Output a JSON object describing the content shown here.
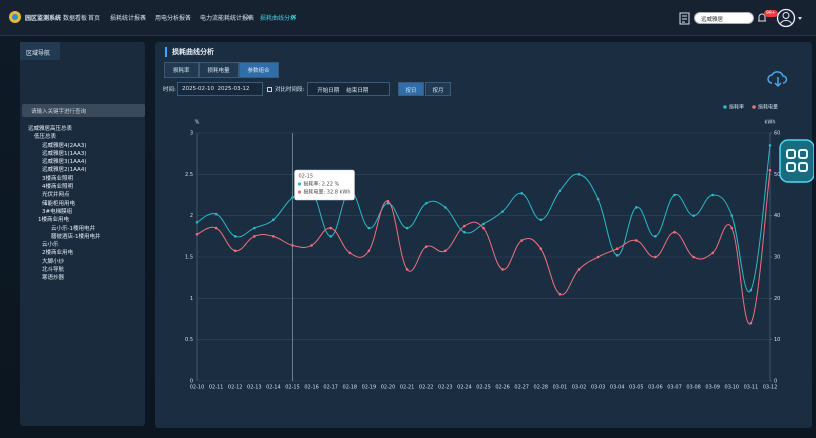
{
  "nav": {
    "logo": "园区监测系统",
    "menu": [
      "数据看板",
      "首页"
    ],
    "tabs": [
      "损耗统计报表",
      "用电分析报告",
      "电力流能耗统计报表",
      "损耗曲线分析"
    ],
    "search": "远威雅居",
    "badge": "99+"
  },
  "sidebar": {
    "title": "区域导航",
    "search_placeholder": "请输入关键字进行查询",
    "tree": [
      "远威雅居高压总表",
      "低压总表",
      "远威雅居4(2AA3)",
      "远威雅居1(1AA3)",
      "远威雅居3(1AA4)",
      "远威雅居2(1AA4)",
      "3楼商业照明",
      "4楼商业照明",
      "光伏并网点",
      "储能柜用用电",
      "3#电梯膜组",
      "1楼商业用电",
      "云小乐-1楼用电井",
      "膳彼酒店-1楼用电井",
      "云小乐",
      "2楼商业用电",
      "大脚小炒",
      "北斗导航",
      "寒语炒器"
    ]
  },
  "panel": {
    "title": "损耗曲线分析",
    "tabs": [
      "损耗率",
      "损耗电量",
      "参数组合"
    ],
    "time_label": "时间:",
    "start": "2025-02-10",
    "end": "2025-03-12",
    "compare_label": "对比时间段:",
    "compare_start": "开始日期",
    "compare_end": "结束日期",
    "granularity": [
      "按日",
      "按月"
    ]
  },
  "chart_data": {
    "type": "line",
    "smooth": true,
    "grid": true,
    "legend": "top-right",
    "y_label": "%",
    "y2_label": "kWh",
    "categories": [
      "02-10",
      "02-11",
      "02-12",
      "02-13",
      "02-14",
      "02-15",
      "02-16",
      "02-17",
      "02-18",
      "02-19",
      "02-20",
      "02-21",
      "02-22",
      "02-23",
      "02-24",
      "02-25",
      "02-26",
      "02-27",
      "02-28",
      "03-01",
      "03-02",
      "03-03",
      "03-04",
      "03-05",
      "03-06",
      "03-07",
      "03-08",
      "03-09",
      "03-10",
      "03-11",
      "03-12"
    ],
    "ylim": [
      0,
      3
    ],
    "yticks": [
      0,
      0.5,
      1,
      1.5,
      2,
      2.5,
      3
    ],
    "y2lim": [
      0,
      60
    ],
    "y2ticks": [
      0,
      10,
      20,
      30,
      40,
      50,
      60
    ],
    "series": [
      {
        "name": "损耗率",
        "color": "#2bb8c8",
        "values": [
          1.92,
          2.02,
          1.75,
          1.85,
          1.95,
          2.22,
          2.3,
          1.75,
          2.3,
          1.85,
          2.15,
          1.85,
          2.15,
          2.1,
          1.8,
          1.9,
          2.05,
          2.27,
          1.95,
          2.3,
          2.5,
          2.2,
          1.52,
          2.1,
          1.75,
          2.25,
          2.0,
          2.25,
          2.0,
          1.1,
          2.85
        ]
      },
      {
        "name": "损耗电量",
        "color": "#f0707c",
        "axis": "y2",
        "values": [
          35.5,
          37,
          31.5,
          35,
          35,
          32.8,
          32.8,
          37,
          31,
          31.5,
          43.5,
          27,
          32.5,
          31.5,
          37.5,
          37,
          27,
          34,
          32,
          21,
          27,
          30,
          32,
          34,
          30,
          36,
          30,
          31,
          37,
          14,
          51
        ]
      }
    ]
  },
  "tooltip": {
    "title": "02-15",
    "lines": [
      "损耗率: 2.22 %",
      "损耗电量: 32.8 kWh"
    ]
  }
}
